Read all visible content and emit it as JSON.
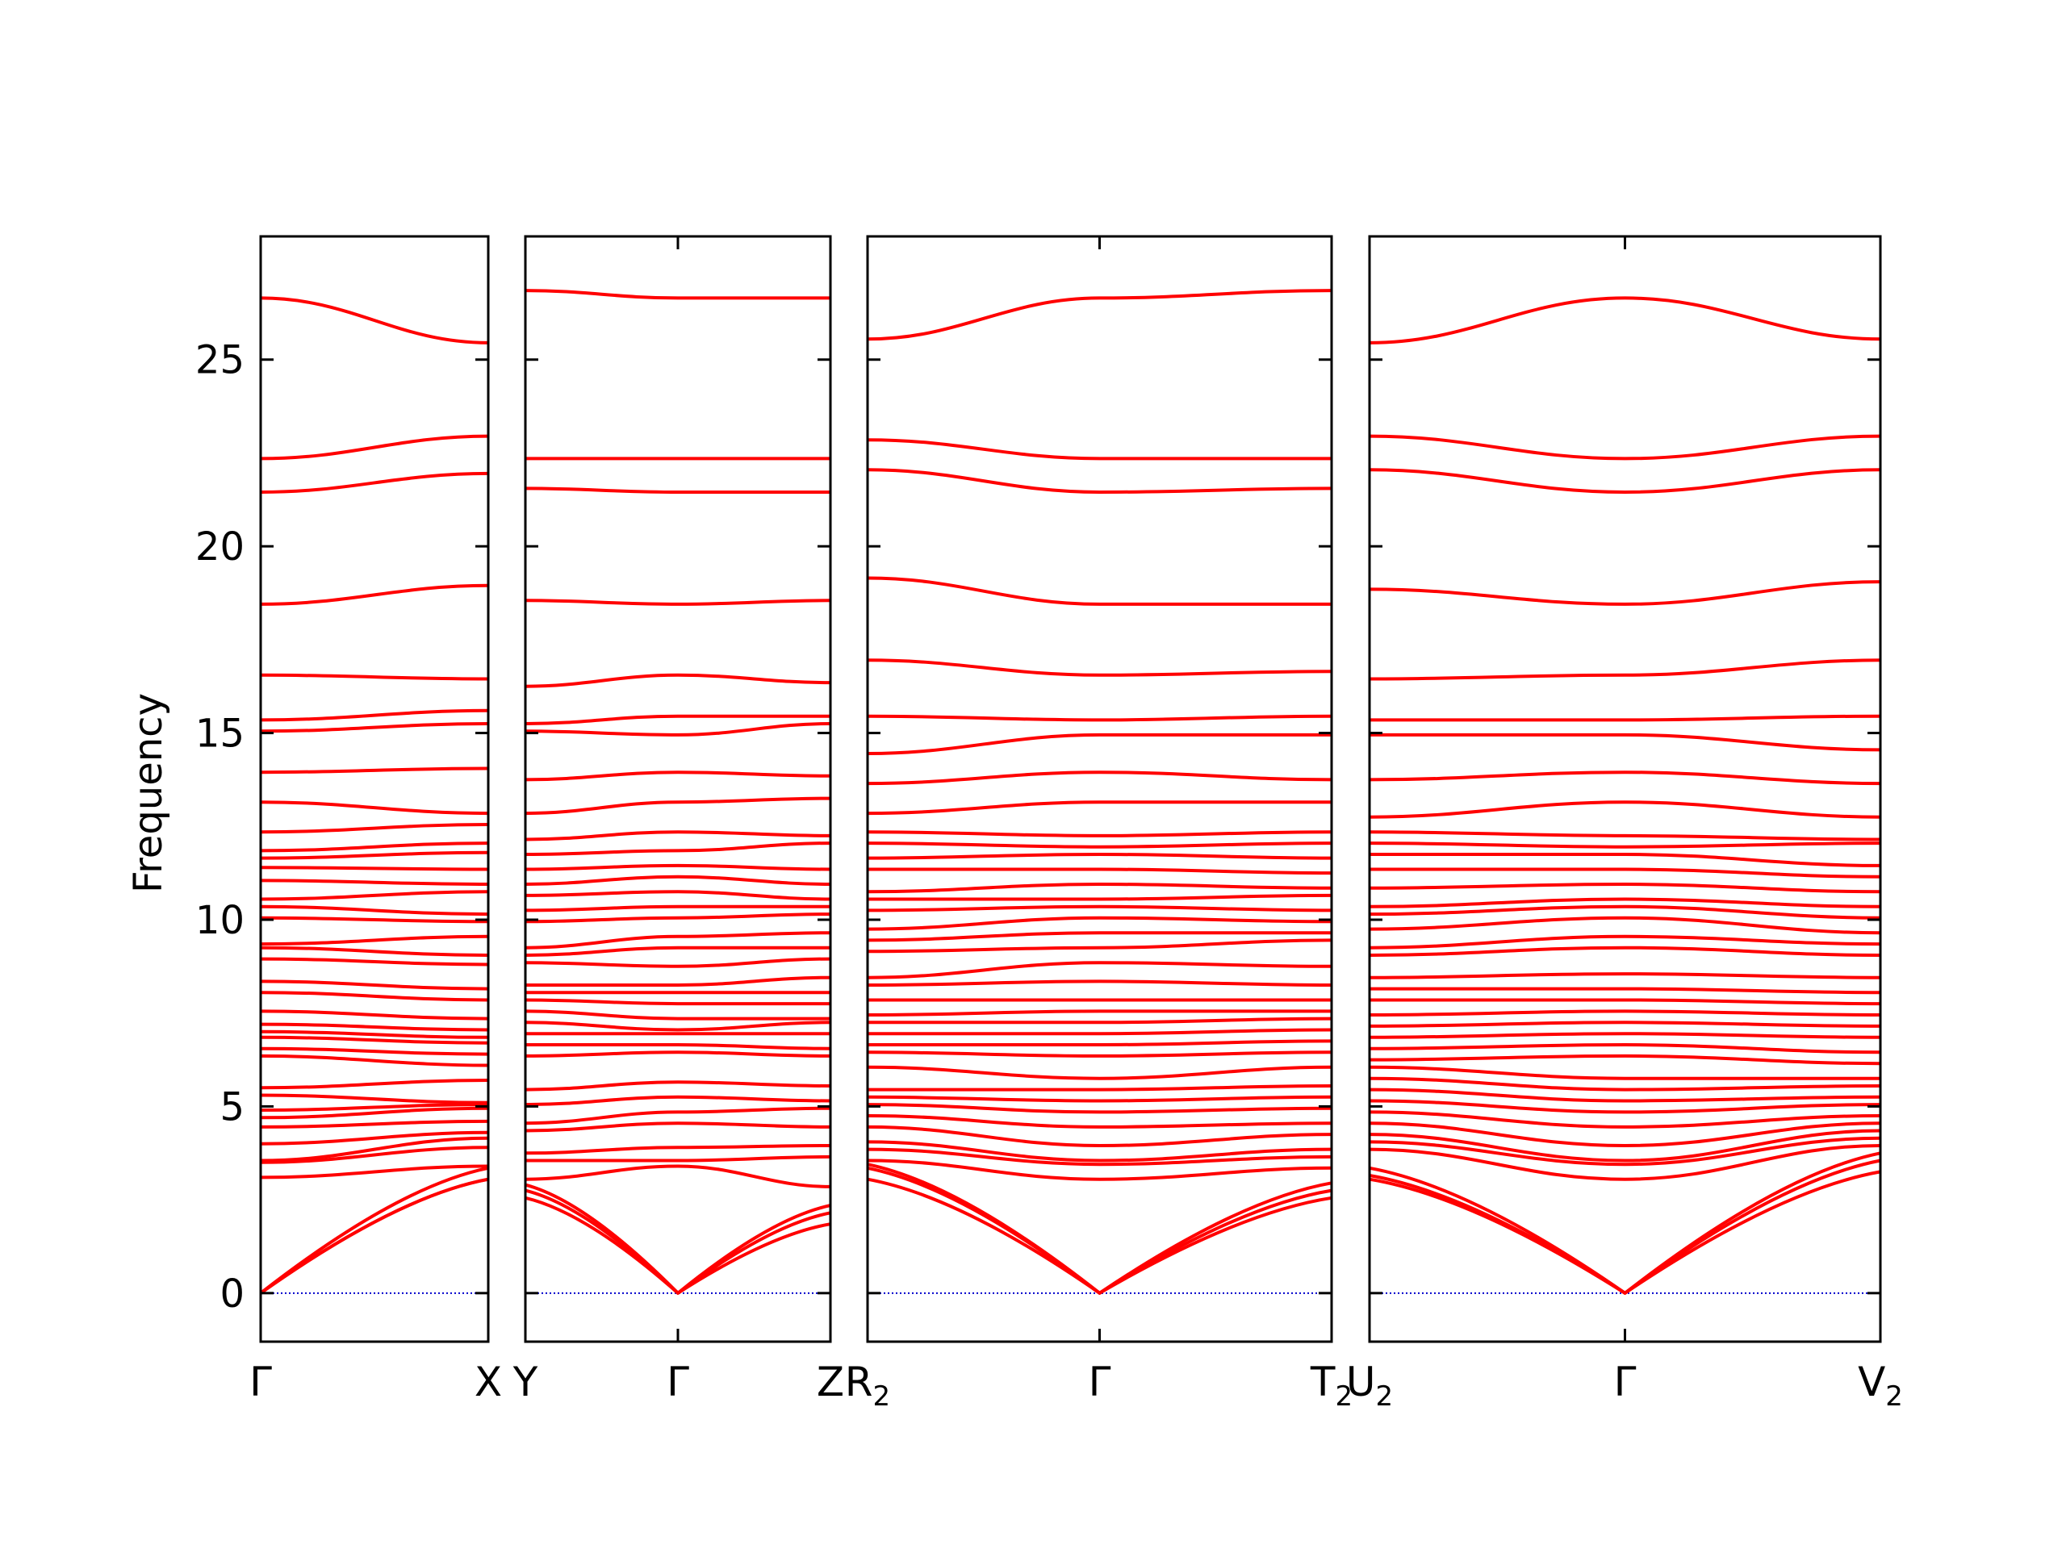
{
  "chart_data": {
    "type": "line",
    "title": "",
    "ylabel": "Frequency",
    "ylim": [
      -1.3,
      28.3
    ],
    "yticks": [
      0,
      5,
      10,
      15,
      20,
      25
    ],
    "line_color": "#ff0000",
    "zero_line_color": "#0000cc",
    "grid": false,
    "panels": [
      {
        "labels": [
          {
            "main": "Γ",
            "sub": ""
          },
          {
            "main": "X",
            "sub": ""
          }
        ],
        "bands": [
          [
            0.0,
            3.05
          ],
          [
            0.0,
            3.35
          ],
          [
            0.0,
            3.05
          ],
          [
            3.1,
            3.4
          ],
          [
            3.5,
            3.9
          ],
          [
            3.55,
            4.15
          ],
          [
            4.0,
            4.3
          ],
          [
            4.45,
            4.6
          ],
          [
            4.7,
            4.95
          ],
          [
            4.9,
            5.05
          ],
          [
            5.3,
            5.1
          ],
          [
            5.5,
            5.7
          ],
          [
            6.35,
            6.1
          ],
          [
            6.55,
            6.4
          ],
          [
            6.85,
            6.7
          ],
          [
            7.0,
            6.85
          ],
          [
            7.2,
            7.05
          ],
          [
            7.55,
            7.35
          ],
          [
            8.05,
            7.85
          ],
          [
            8.35,
            8.15
          ],
          [
            8.95,
            8.8
          ],
          [
            9.25,
            9.05
          ],
          [
            9.35,
            9.55
          ],
          [
            10.05,
            9.95
          ],
          [
            10.35,
            10.15
          ],
          [
            10.55,
            10.75
          ],
          [
            11.05,
            10.95
          ],
          [
            11.4,
            11.35
          ],
          [
            11.65,
            11.8
          ],
          [
            11.85,
            12.05
          ],
          [
            12.35,
            12.55
          ],
          [
            13.15,
            12.85
          ],
          [
            13.95,
            14.05
          ],
          [
            15.05,
            15.25
          ],
          [
            15.35,
            15.6
          ],
          [
            16.55,
            16.45
          ],
          [
            18.45,
            18.95
          ],
          [
            21.45,
            21.95
          ],
          [
            22.35,
            22.95
          ],
          [
            26.65,
            25.45
          ]
        ]
      },
      {
        "labels": [
          {
            "main": "Y",
            "sub": ""
          },
          {
            "main": "Γ",
            "sub": ""
          },
          {
            "main": "Z",
            "sub": ""
          }
        ],
        "bands": [
          [
            2.55,
            0.0,
            1.85
          ],
          [
            2.75,
            0.0,
            2.15
          ],
          [
            2.9,
            0.0,
            2.35
          ],
          [
            3.05,
            3.4,
            2.85
          ],
          [
            3.55,
            3.55,
            3.65
          ],
          [
            3.75,
            3.9,
            3.95
          ],
          [
            4.35,
            4.55,
            4.45
          ],
          [
            4.55,
            4.85,
            4.95
          ],
          [
            5.05,
            5.25,
            5.15
          ],
          [
            5.45,
            5.65,
            5.55
          ],
          [
            6.35,
            6.45,
            6.35
          ],
          [
            6.65,
            6.65,
            6.55
          ],
          [
            6.95,
            6.95,
            6.95
          ],
          [
            7.25,
            7.05,
            7.25
          ],
          [
            7.55,
            7.35,
            7.35
          ],
          [
            7.85,
            7.75,
            7.75
          ],
          [
            8.05,
            8.05,
            8.05
          ],
          [
            8.25,
            8.25,
            8.45
          ],
          [
            8.85,
            8.75,
            8.95
          ],
          [
            9.05,
            9.25,
            9.25
          ],
          [
            9.25,
            9.55,
            9.65
          ],
          [
            9.95,
            10.05,
            10.15
          ],
          [
            10.25,
            10.35,
            10.35
          ],
          [
            10.65,
            10.75,
            10.55
          ],
          [
            10.95,
            11.15,
            10.95
          ],
          [
            11.35,
            11.45,
            11.35
          ],
          [
            11.75,
            11.85,
            12.05
          ],
          [
            12.15,
            12.35,
            12.25
          ],
          [
            12.85,
            13.15,
            13.25
          ],
          [
            13.75,
            13.95,
            13.85
          ],
          [
            15.05,
            14.95,
            15.25
          ],
          [
            15.25,
            15.45,
            15.45
          ],
          [
            16.25,
            16.55,
            16.35
          ],
          [
            18.55,
            18.45,
            18.55
          ],
          [
            21.55,
            21.45,
            21.45
          ],
          [
            22.35,
            22.35,
            22.35
          ],
          [
            26.85,
            26.65,
            26.65
          ]
        ]
      },
      {
        "labels": [
          {
            "main": "R",
            "sub": "2"
          },
          {
            "main": "Γ",
            "sub": ""
          },
          {
            "main": "T",
            "sub": "2"
          }
        ],
        "bands": [
          [
            3.05,
            0.0,
            2.55
          ],
          [
            3.35,
            0.0,
            2.75
          ],
          [
            3.45,
            0.0,
            2.95
          ],
          [
            3.55,
            3.05,
            3.35
          ],
          [
            3.85,
            3.45,
            3.65
          ],
          [
            4.05,
            3.55,
            3.85
          ],
          [
            4.45,
            3.95,
            4.25
          ],
          [
            4.75,
            4.45,
            4.55
          ],
          [
            5.05,
            4.85,
            4.95
          ],
          [
            5.25,
            5.15,
            5.25
          ],
          [
            5.45,
            5.45,
            5.55
          ],
          [
            6.05,
            5.75,
            6.05
          ],
          [
            6.45,
            6.35,
            6.45
          ],
          [
            6.65,
            6.65,
            6.75
          ],
          [
            6.95,
            6.95,
            7.05
          ],
          [
            7.25,
            7.25,
            7.35
          ],
          [
            7.45,
            7.55,
            7.55
          ],
          [
            7.85,
            7.85,
            7.85
          ],
          [
            8.25,
            8.35,
            8.25
          ],
          [
            8.45,
            8.85,
            8.75
          ],
          [
            9.15,
            9.25,
            9.45
          ],
          [
            9.45,
            9.65,
            9.65
          ],
          [
            9.75,
            10.05,
            9.95
          ],
          [
            10.25,
            10.35,
            10.25
          ],
          [
            10.55,
            10.55,
            10.65
          ],
          [
            10.75,
            10.95,
            10.85
          ],
          [
            11.35,
            11.35,
            11.25
          ],
          [
            11.65,
            11.75,
            11.65
          ],
          [
            12.05,
            11.95,
            12.05
          ],
          [
            12.35,
            12.25,
            12.35
          ],
          [
            12.85,
            13.15,
            13.15
          ],
          [
            13.65,
            13.95,
            13.75
          ],
          [
            14.45,
            14.95,
            14.95
          ],
          [
            15.45,
            15.35,
            15.45
          ],
          [
            16.95,
            16.55,
            16.65
          ],
          [
            19.15,
            18.45,
            18.45
          ],
          [
            22.05,
            21.45,
            21.55
          ],
          [
            22.85,
            22.35,
            22.35
          ],
          [
            25.55,
            26.65,
            26.85
          ]
        ]
      },
      {
        "labels": [
          {
            "main": "U",
            "sub": "2"
          },
          {
            "main": "Γ",
            "sub": ""
          },
          {
            "main": "V",
            "sub": "2"
          }
        ],
        "bands": [
          [
            3.05,
            0.0,
            3.25
          ],
          [
            3.15,
            0.0,
            3.55
          ],
          [
            3.35,
            0.0,
            3.75
          ],
          [
            3.85,
            3.05,
            3.95
          ],
          [
            4.05,
            3.45,
            4.15
          ],
          [
            4.25,
            3.55,
            4.35
          ],
          [
            4.55,
            3.95,
            4.55
          ],
          [
            4.85,
            4.45,
            4.75
          ],
          [
            5.15,
            4.85,
            5.05
          ],
          [
            5.45,
            5.15,
            5.25
          ],
          [
            5.75,
            5.45,
            5.55
          ],
          [
            6.05,
            5.75,
            5.75
          ],
          [
            6.25,
            6.35,
            6.15
          ],
          [
            6.55,
            6.65,
            6.45
          ],
          [
            6.85,
            6.95,
            6.85
          ],
          [
            7.15,
            7.25,
            7.15
          ],
          [
            7.45,
            7.55,
            7.45
          ],
          [
            7.85,
            7.85,
            7.75
          ],
          [
            8.15,
            8.15,
            8.05
          ],
          [
            8.45,
            8.55,
            8.45
          ],
          [
            9.05,
            9.25,
            9.05
          ],
          [
            9.25,
            9.55,
            9.35
          ],
          [
            9.75,
            10.05,
            9.65
          ],
          [
            10.15,
            10.35,
            10.05
          ],
          [
            10.35,
            10.55,
            10.35
          ],
          [
            10.85,
            10.95,
            10.75
          ],
          [
            11.35,
            11.35,
            11.15
          ],
          [
            11.75,
            11.75,
            11.45
          ],
          [
            12.05,
            11.95,
            12.05
          ],
          [
            12.35,
            12.25,
            12.15
          ],
          [
            12.75,
            13.15,
            12.75
          ],
          [
            13.75,
            13.95,
            13.65
          ],
          [
            14.95,
            14.95,
            14.55
          ],
          [
            15.35,
            15.35,
            15.45
          ],
          [
            16.45,
            16.55,
            16.95
          ],
          [
            18.85,
            18.45,
            19.05
          ],
          [
            22.05,
            21.45,
            22.05
          ],
          [
            22.95,
            22.35,
            22.95
          ],
          [
            25.45,
            26.65,
            25.55
          ]
        ]
      }
    ]
  }
}
